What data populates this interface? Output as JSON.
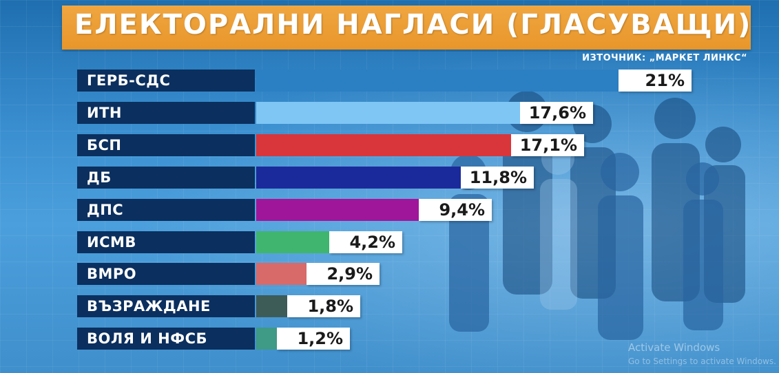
{
  "header": {
    "title": "ЕЛЕКТОРАЛНИ НАГЛАСИ (ГЛАСУВАЩИ)",
    "source": "ИЗТОЧНИК: „МАРКЕТ ЛИНКС“"
  },
  "chart_data": {
    "type": "bar",
    "orientation": "horizontal",
    "title": "ЕЛЕКТОРАЛНИ НАГЛАСИ (ГЛАСУВАЩИ)",
    "xlabel": "",
    "ylabel": "",
    "xlim": [
      0,
      21
    ],
    "grid": false,
    "categories": [
      "ГЕРБ-СДС",
      "ИТН",
      "БСП",
      "ДБ",
      "ДПС",
      "ИСМВ",
      "ВМРО",
      "ВЪЗРАЖДАНЕ",
      "ВОЛЯ И НФСБ"
    ],
    "values": [
      21,
      17.6,
      17.1,
      11.8,
      9.4,
      4.2,
      2.9,
      1.8,
      1.2
    ],
    "value_labels": [
      "21%",
      "17,6%",
      "17,1%",
      "11,8%",
      "9,4%",
      "4,2%",
      "2,9%",
      "1,8%",
      "1,2%"
    ],
    "colors": [
      "#2b7fc3",
      "#7fc6f5",
      "#d9363b",
      "#1b2a9a",
      "#a0169a",
      "#3fb56f",
      "#d86a6a",
      "#3d5c58",
      "#3f9a86"
    ]
  },
  "overlay": {
    "watermark_line1": "Activate Windows",
    "watermark_line2": "Go to Settings to activate Windows."
  }
}
